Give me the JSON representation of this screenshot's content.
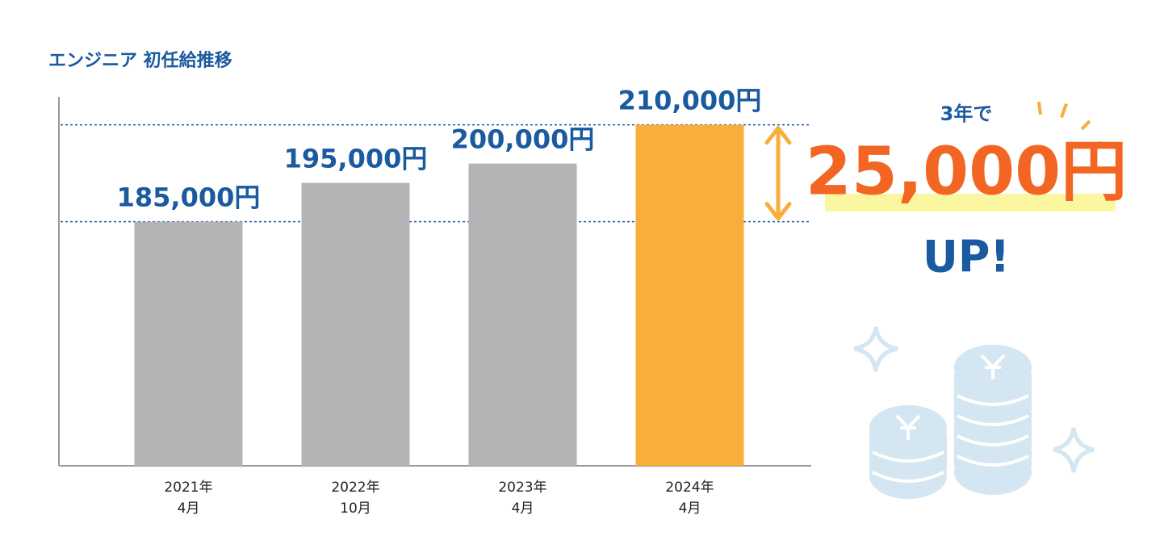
{
  "chart_data": {
    "type": "bar",
    "title": "エンジニア 初任給推移",
    "categories": [
      "2021年\n4月",
      "2022年\n10月",
      "2023年\n4月",
      "2024年\n4月"
    ],
    "values": [
      185000,
      195000,
      200000,
      210000
    ],
    "value_labels": [
      "185,000円",
      "195,000円",
      "200,000円",
      "210,000円"
    ],
    "colors": [
      "#b4b4b6",
      "#b4b4b6",
      "#b4b4b6",
      "#f9ad3a"
    ],
    "ylim": [
      122000,
      212000
    ],
    "annotations": {
      "prefix": "3年で",
      "amount": "25,000円",
      "suffix": "UP!"
    }
  }
}
